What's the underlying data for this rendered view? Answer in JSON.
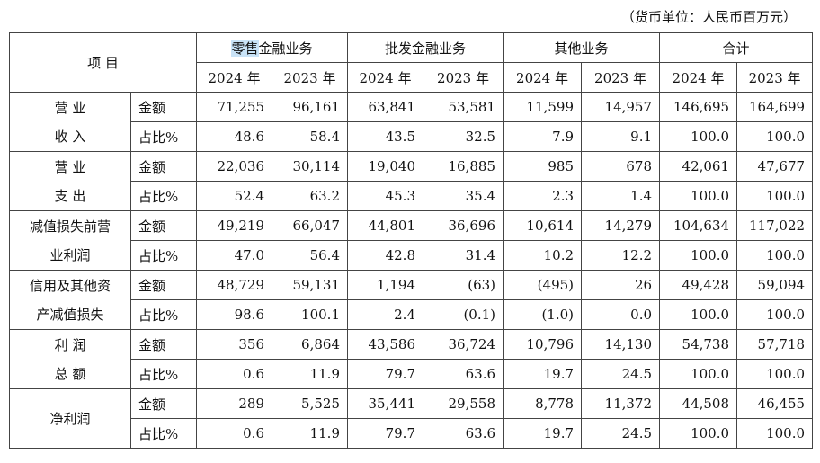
{
  "unit_note": "（货币单位：人民币百万元）",
  "header": {
    "item": "项 目",
    "segments": [
      {
        "pre": "零售",
        "post": "金融业务"
      },
      {
        "pre": "批发金融业务",
        "post": ""
      },
      {
        "pre": "其他业务",
        "post": ""
      },
      {
        "pre": "合计",
        "post": ""
      }
    ],
    "years": [
      "2024 年",
      "2023 年",
      "2024 年",
      "2023 年",
      "2024 年",
      "2023 年",
      "2024 年",
      "2023 年"
    ]
  },
  "rows": [
    {
      "label": [
        "营 业",
        "收 入"
      ],
      "metrics": [
        {
          "name": "金额",
          "values": [
            "71,255",
            "96,161",
            "63,841",
            "53,581",
            "11,599",
            "14,957",
            "146,695",
            "164,699"
          ]
        },
        {
          "name": "占比%",
          "values": [
            "48.6",
            "58.4",
            "43.5",
            "32.5",
            "7.9",
            "9.1",
            "100.0",
            "100.0"
          ]
        }
      ]
    },
    {
      "label": [
        "营 业",
        "支 出"
      ],
      "metrics": [
        {
          "name": "金额",
          "values": [
            "22,036",
            "30,114",
            "19,040",
            "16,885",
            "985",
            "678",
            "42,061",
            "47,677"
          ]
        },
        {
          "name": "占比%",
          "values": [
            "52.4",
            "63.2",
            "45.3",
            "35.4",
            "2.3",
            "1.4",
            "100.0",
            "100.0"
          ]
        }
      ]
    },
    {
      "label": [
        "减值损失前营",
        "业利润"
      ],
      "metrics": [
        {
          "name": "金额",
          "values": [
            "49,219",
            "66,047",
            "44,801",
            "36,696",
            "10,614",
            "14,279",
            "104,634",
            "117,022"
          ]
        },
        {
          "name": "占比%",
          "values": [
            "47.0",
            "56.4",
            "42.8",
            "31.4",
            "10.2",
            "12.2",
            "100.0",
            "100.0"
          ]
        }
      ]
    },
    {
      "label": [
        "信用及其他资",
        "产减值损失"
      ],
      "metrics": [
        {
          "name": "金额",
          "values": [
            "48,729",
            "59,131",
            "1,194",
            "(63)",
            "(495)",
            "26",
            "49,428",
            "59,094"
          ]
        },
        {
          "name": "占比%",
          "values": [
            "98.6",
            "100.1",
            "2.4",
            "(0.1)",
            "(1.0)",
            "0.0",
            "100.0",
            "100.0"
          ]
        }
      ]
    },
    {
      "label": [
        "利 润",
        "总 额"
      ],
      "metrics": [
        {
          "name": "金额",
          "values": [
            "356",
            "6,864",
            "43,586",
            "36,724",
            "10,796",
            "14,130",
            "54,738",
            "57,718"
          ]
        },
        {
          "name": "占比%",
          "values": [
            "0.6",
            "11.9",
            "79.7",
            "63.6",
            "19.7",
            "24.5",
            "100.0",
            "100.0"
          ]
        }
      ]
    },
    {
      "label": [
        "净利润"
      ],
      "metrics": [
        {
          "name": "金额",
          "values": [
            "289",
            "5,525",
            "35,441",
            "29,558",
            "8,778",
            "11,372",
            "44,508",
            "46,455"
          ]
        },
        {
          "name": "占比%",
          "values": [
            "0.6",
            "11.9",
            "79.7",
            "63.6",
            "19.7",
            "24.5",
            "100.0",
            "100.0"
          ]
        }
      ]
    }
  ],
  "colors": {
    "highlight": "#c9e3f7",
    "border": "#444444"
  }
}
